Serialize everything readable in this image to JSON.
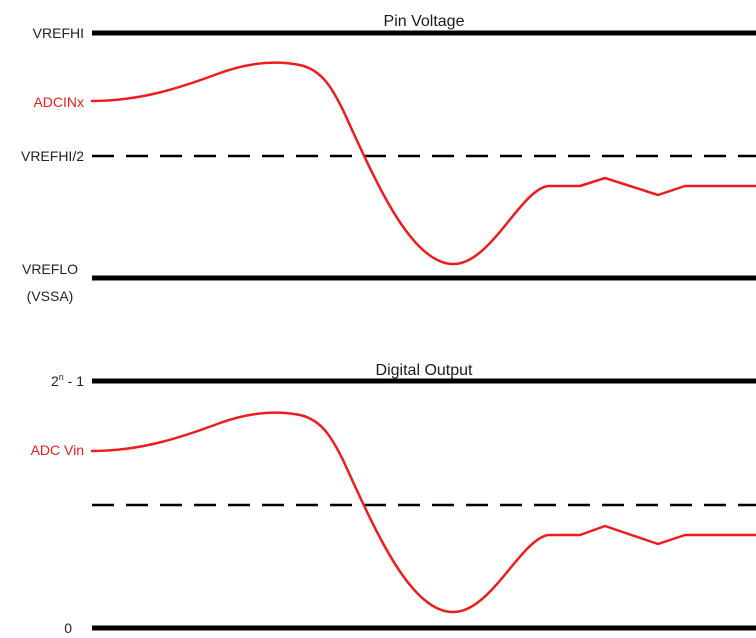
{
  "pin_voltage": {
    "title": "Pin Voltage",
    "vrefhi_label": "VREFHI",
    "signal_label": "ADCINx",
    "mid_label": "VREFHI/2",
    "vreflo_label": "VREFLO",
    "vssa_label": "(VSSA)"
  },
  "digital_output": {
    "title": "Digital Output",
    "max_label_base": "2",
    "max_label_sup": "n",
    "max_label_rest": " - 1",
    "signal_label": "ADC Vin",
    "zero_label": "0"
  },
  "colors": {
    "signal": "#ee1c1c",
    "reference_lines": "#000000"
  }
}
